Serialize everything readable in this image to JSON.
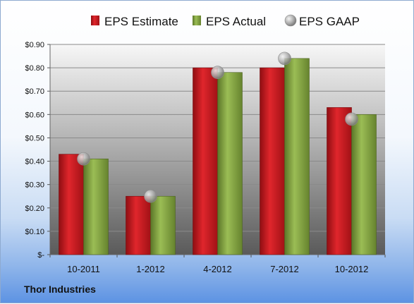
{
  "company": "Thor Industries",
  "colors": {
    "estimate": "#c4161c",
    "actual": "#7a9a3a",
    "gaap": "#b8b8b8"
  },
  "chart_data": {
    "type": "bar",
    "title": "",
    "xlabel": "",
    "ylabel": "",
    "categories": [
      "10-2011",
      "1-2012",
      "4-2012",
      "7-2012",
      "10-2012"
    ],
    "series": [
      {
        "name": "EPS Estimate",
        "kind": "bar",
        "values": [
          0.43,
          0.25,
          0.8,
          0.8,
          0.63
        ]
      },
      {
        "name": "EPS Actual",
        "kind": "bar",
        "values": [
          0.41,
          0.25,
          0.78,
          0.84,
          0.6
        ]
      },
      {
        "name": "EPS GAAP",
        "kind": "marker",
        "values": [
          0.41,
          0.25,
          0.78,
          0.84,
          0.58
        ]
      }
    ],
    "ylim": [
      0,
      0.9
    ],
    "yticks": [
      0,
      0.1,
      0.2,
      0.3,
      0.4,
      0.5,
      0.6,
      0.7,
      0.8,
      0.9
    ],
    "ytick_labels": [
      "$-",
      "$0.10",
      "$0.20",
      "$0.30",
      "$0.40",
      "$0.50",
      "$0.60",
      "$0.70",
      "$0.80",
      "$0.90"
    ],
    "legend_position": "top",
    "grid": true
  }
}
